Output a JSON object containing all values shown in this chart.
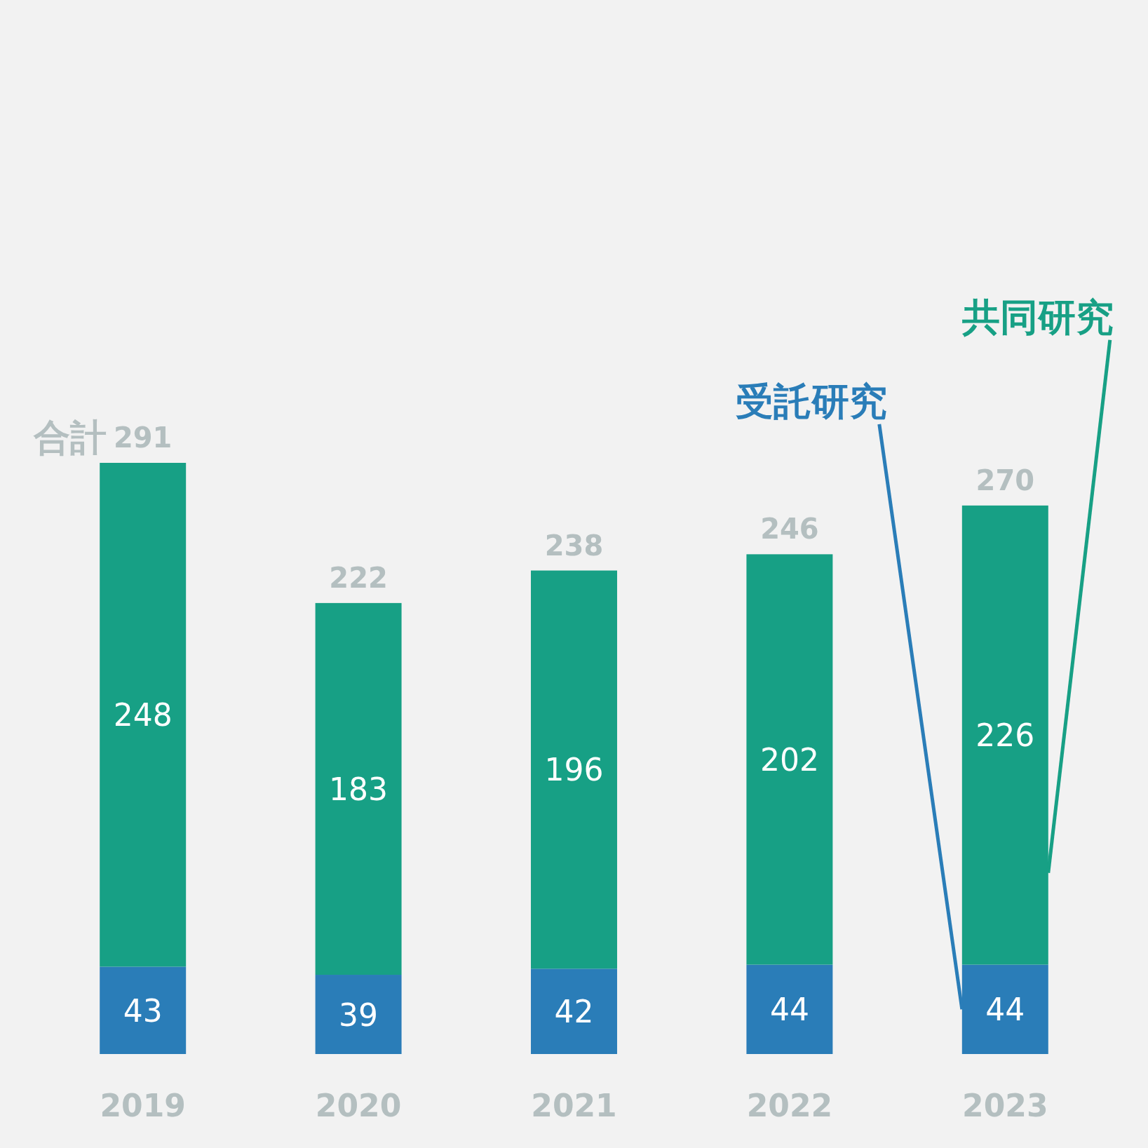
{
  "chart_data": {
    "type": "bar",
    "stacked": true,
    "categories": [
      "2019",
      "2020",
      "2021",
      "2022",
      "2023"
    ],
    "series": [
      {
        "name": "受託研究",
        "color": "#2a7db8",
        "values": [
          43,
          39,
          42,
          44,
          44
        ]
      },
      {
        "name": "共同研究",
        "color": "#17a085",
        "values": [
          248,
          183,
          196,
          202,
          226
        ]
      }
    ],
    "data_labels": true,
    "totals": [
      "291",
      "222",
      "238",
      "246",
      "270"
    ],
    "annotations": [
      {
        "text": "合計",
        "x": "2019",
        "y": 291
      }
    ],
    "legend": false
  }
}
